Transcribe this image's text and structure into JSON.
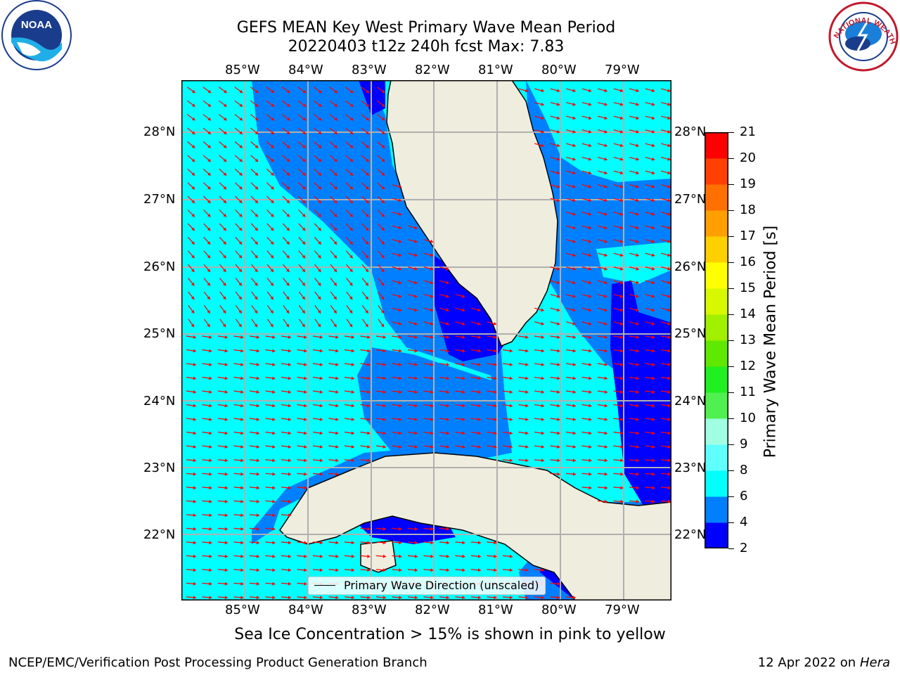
{
  "header": {
    "title_line1": "GEFS MEAN Key West Primary Wave Mean Period",
    "title_line2": "20220403 t12z 240h fcst   Max: 7.83"
  },
  "logos": {
    "left": {
      "name": "noaa-logo",
      "text": "NOAA",
      "ring_text": "NATIONAL OCEANIC AND ATMOSPHERIC ADMINISTRATION · U.S. DEPARTMENT OF COMMERCE"
    },
    "right": {
      "name": "nws-logo",
      "ring_text": "NATIONAL WEATHER SERVICE"
    }
  },
  "map": {
    "lon_ticks": [
      "85°W",
      "84°W",
      "83°W",
      "82°W",
      "81°W",
      "80°W",
      "79°W"
    ],
    "lat_ticks": [
      "28°N",
      "27°N",
      "26°N",
      "25°N",
      "24°N",
      "23°N",
      "22°N"
    ],
    "legend_label": "Primary Wave Direction (unscaled)",
    "colors": {
      "land": "#eeedde",
      "deep_blue": "#0000ff",
      "mid_blue": "#0080ff",
      "cyan": "#00ffff",
      "arrow": "#ff0000",
      "grid": "#b0b0b0"
    }
  },
  "colorbar": {
    "label": "Primary Wave Mean Period [s]",
    "tick_labels": [
      "21",
      "20",
      "19",
      "18",
      "17",
      "16",
      "15",
      "14",
      "13",
      "12",
      "11",
      "10",
      "9",
      "8",
      "6",
      "4",
      "2"
    ],
    "bands": [
      {
        "from": "2",
        "to": "4",
        "color": "#0000ff"
      },
      {
        "from": "4",
        "to": "6",
        "color": "#0080ff"
      },
      {
        "from": "6",
        "to": "8",
        "color": "#00ffff"
      },
      {
        "from": "8",
        "to": "9",
        "color": "#60ffff"
      },
      {
        "from": "9",
        "to": "10",
        "color": "#a0ffe0"
      },
      {
        "from": "10",
        "to": "11",
        "color": "#50f050"
      },
      {
        "from": "11",
        "to": "12",
        "color": "#20f020"
      },
      {
        "from": "12",
        "to": "13",
        "color": "#60e800"
      },
      {
        "from": "13",
        "to": "14",
        "color": "#a0f000"
      },
      {
        "from": "14",
        "to": "15",
        "color": "#d8f800"
      },
      {
        "from": "15",
        "to": "16",
        "color": "#ffff00"
      },
      {
        "from": "16",
        "to": "17",
        "color": "#ffd000"
      },
      {
        "from": "17",
        "to": "18",
        "color": "#ffa000"
      },
      {
        "from": "18",
        "to": "19",
        "color": "#ff7000"
      },
      {
        "from": "19",
        "to": "20",
        "color": "#ff4000"
      },
      {
        "from": "20",
        "to": "21",
        "color": "#ff0000"
      }
    ]
  },
  "notes": {
    "sea_ice": "Sea Ice Concentration > 15% is shown in pink to yellow"
  },
  "footer": {
    "left": "NCEP/EMC/Verification Post Processing Product Generation Branch",
    "right_date": "12 Apr 2022 on ",
    "right_host": "Hera"
  }
}
